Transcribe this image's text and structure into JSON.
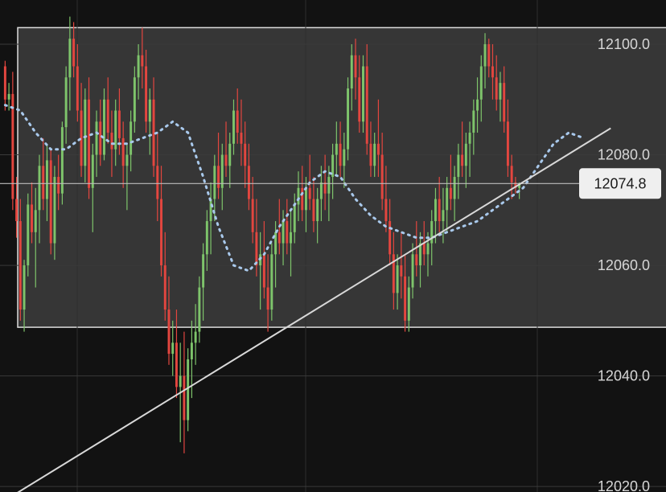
{
  "chart_data": {
    "type": "candlestick",
    "title": "",
    "xlabel": "",
    "ylabel": "",
    "ylim": [
      12019,
      12108
    ],
    "y_ticks": [
      "12020.0",
      "12040.0",
      "12060.0",
      "12080.0",
      "12100.0"
    ],
    "last_price": {
      "value": 12074.8,
      "label": "12074.8"
    },
    "range_box": {
      "low": 12048.8,
      "high": 12103.0
    },
    "trendline": {
      "start": [
        0,
        12017.5
      ],
      "end": [
        159,
        12084.8
      ]
    },
    "colors": {
      "background": "#121212",
      "box_fill": "#363636",
      "up": "#7ec46b",
      "down": "#e3463f",
      "moving_average": "#a9c9ec",
      "trendline": "#d8d8d8",
      "box_border": "#dddddd",
      "last_price_line": "#bdbdbd",
      "label_bg": "#efefef"
    },
    "series": [
      {
        "type": "moving_average",
        "style": "dotted",
        "points": [
          [
            0,
            12089
          ],
          [
            4,
            12088
          ],
          [
            8,
            12084
          ],
          [
            12,
            12081
          ],
          [
            16,
            12081
          ],
          [
            20,
            12083
          ],
          [
            24,
            12084
          ],
          [
            28,
            12082
          ],
          [
            32,
            12082
          ],
          [
            36,
            12083
          ],
          [
            40,
            12084
          ],
          [
            44,
            12086
          ],
          [
            48,
            12084
          ],
          [
            52,
            12076
          ],
          [
            56,
            12067
          ],
          [
            60,
            12060
          ],
          [
            64,
            12059
          ],
          [
            68,
            12062
          ],
          [
            72,
            12067
          ],
          [
            76,
            12071
          ],
          [
            80,
            12075
          ],
          [
            84,
            12077
          ],
          [
            88,
            12076
          ],
          [
            92,
            12072
          ],
          [
            96,
            12069
          ],
          [
            100,
            12067
          ],
          [
            104,
            12066
          ],
          [
            108,
            12065
          ],
          [
            112,
            12065
          ],
          [
            116,
            12066
          ],
          [
            120,
            12067
          ],
          [
            124,
            12068
          ],
          [
            128,
            12070
          ],
          [
            132,
            12072
          ],
          [
            136,
            12074
          ],
          [
            140,
            12078
          ],
          [
            144,
            12082
          ],
          [
            148,
            12084
          ],
          [
            152,
            12083
          ]
        ]
      },
      {
        "type": "candles",
        "ohlc": [
          [
            12096,
            12097,
            12088,
            12090
          ],
          [
            12090,
            12093,
            12088,
            12091
          ],
          [
            12091,
            12095,
            12070,
            12072
          ],
          [
            12072,
            12076,
            12065,
            12068
          ],
          [
            12068,
            12072,
            12050,
            12052
          ],
          [
            12052,
            12061,
            12048,
            12060
          ],
          [
            12060,
            12073,
            12058,
            12071
          ],
          [
            12071,
            12075,
            12064,
            12066
          ],
          [
            12066,
            12074,
            12056,
            12070
          ],
          [
            12070,
            12080,
            12064,
            12078
          ],
          [
            12078,
            12083,
            12070,
            12072
          ],
          [
            12072,
            12082,
            12068,
            12079
          ],
          [
            12079,
            12081,
            12062,
            12064
          ],
          [
            12064,
            12078,
            12061,
            12076
          ],
          [
            12076,
            12080,
            12070,
            12073
          ],
          [
            12073,
            12086,
            12071,
            12085
          ],
          [
            12085,
            12096,
            12082,
            12094
          ],
          [
            12094,
            12105,
            12088,
            12101
          ],
          [
            12101,
            12104,
            12094,
            12096
          ],
          [
            12096,
            12100,
            12086,
            12088
          ],
          [
            12088,
            12093,
            12076,
            12078
          ],
          [
            12078,
            12092,
            12075,
            12090
          ],
          [
            12090,
            12094,
            12072,
            12074
          ],
          [
            12074,
            12082,
            12066,
            12080
          ],
          [
            12080,
            12088,
            12076,
            12086
          ],
          [
            12086,
            12090,
            12078,
            12080
          ],
          [
            12080,
            12092,
            12079,
            12090
          ],
          [
            12090,
            12094,
            12082,
            12084
          ],
          [
            12084,
            12088,
            12076,
            12081
          ],
          [
            12081,
            12090,
            12078,
            12088
          ],
          [
            12088,
            12092,
            12080,
            12083
          ],
          [
            12083,
            12086,
            12074,
            12078
          ],
          [
            12078,
            12082,
            12070,
            12080
          ],
          [
            12080,
            12088,
            12077,
            12086
          ],
          [
            12086,
            12096,
            12084,
            12094
          ],
          [
            12094,
            12100,
            12090,
            12098
          ],
          [
            12098,
            12103,
            12092,
            12096
          ],
          [
            12096,
            12099,
            12084,
            12086
          ],
          [
            12086,
            12092,
            12080,
            12090
          ],
          [
            12090,
            12094,
            12076,
            12078
          ],
          [
            12078,
            12084,
            12068,
            12072
          ],
          [
            12072,
            12078,
            12058,
            12060
          ],
          [
            12060,
            12066,
            12050,
            12052
          ],
          [
            12052,
            12058,
            12042,
            12044
          ],
          [
            12044,
            12050,
            12040,
            12046
          ],
          [
            12046,
            12052,
            12036,
            12038
          ],
          [
            12038,
            12046,
            12028,
            12040
          ],
          [
            12040,
            12048,
            12026,
            12032
          ],
          [
            12032,
            12045,
            12030,
            12043
          ],
          [
            12043,
            12050,
            12036,
            12046
          ],
          [
            12046,
            12053,
            12042,
            12048
          ],
          [
            12048,
            12058,
            12046,
            12056
          ],
          [
            12056,
            12064,
            12050,
            12062
          ],
          [
            12062,
            12070,
            12059,
            12068
          ],
          [
            12068,
            12075,
            12062,
            12072
          ],
          [
            12072,
            12080,
            12068,
            12078
          ],
          [
            12078,
            12084,
            12072,
            12074
          ],
          [
            12074,
            12082,
            12070,
            12080
          ],
          [
            12080,
            12086,
            12076,
            12078
          ],
          [
            12078,
            12084,
            12074,
            12082
          ],
          [
            12082,
            12090,
            12080,
            12088
          ],
          [
            12088,
            12092,
            12082,
            12084
          ],
          [
            12084,
            12090,
            12078,
            12082
          ],
          [
            12082,
            12086,
            12074,
            12078
          ],
          [
            12078,
            12082,
            12070,
            12072
          ],
          [
            12072,
            12076,
            12064,
            12066
          ],
          [
            12066,
            12072,
            12058,
            12060
          ],
          [
            12060,
            12066,
            12052,
            12062
          ],
          [
            12062,
            12068,
            12054,
            12056
          ],
          [
            12056,
            12062,
            12048,
            12052
          ],
          [
            12052,
            12064,
            12050,
            12062
          ],
          [
            12062,
            12068,
            12056,
            12066
          ],
          [
            12066,
            12072,
            12062,
            12064
          ],
          [
            12064,
            12070,
            12060,
            12068
          ],
          [
            12068,
            12072,
            12062,
            12064
          ],
          [
            12064,
            12070,
            12058,
            12066
          ],
          [
            12066,
            12073,
            12064,
            12071
          ],
          [
            12071,
            12077,
            12068,
            12074
          ],
          [
            12074,
            12078,
            12068,
            12070
          ],
          [
            12070,
            12076,
            12066,
            12074
          ],
          [
            12074,
            12080,
            12070,
            12072
          ],
          [
            12072,
            12076,
            12066,
            12068
          ],
          [
            12068,
            12074,
            12064,
            12072
          ],
          [
            12072,
            12078,
            12068,
            12075
          ],
          [
            12075,
            12080,
            12070,
            12073
          ],
          [
            12073,
            12078,
            12068,
            12076
          ],
          [
            12076,
            12082,
            12072,
            12080
          ],
          [
            12080,
            12086,
            12076,
            12082
          ],
          [
            12082,
            12086,
            12076,
            12078
          ],
          [
            12078,
            12084,
            12074,
            12081
          ],
          [
            12081,
            12094,
            12079,
            12092
          ],
          [
            12092,
            12100,
            12088,
            12098
          ],
          [
            12098,
            12101,
            12090,
            12094
          ],
          [
            12094,
            12098,
            12084,
            12086
          ],
          [
            12086,
            12098,
            12084,
            12096
          ],
          [
            12096,
            12100,
            12080,
            12082
          ],
          [
            12082,
            12086,
            12076,
            12078
          ],
          [
            12078,
            12084,
            12076,
            12082
          ],
          [
            12082,
            12090,
            12076,
            12080
          ],
          [
            12080,
            12084,
            12070,
            12072
          ],
          [
            12072,
            12078,
            12066,
            12068
          ],
          [
            12068,
            12072,
            12060,
            12062
          ],
          [
            12062,
            12066,
            12052,
            12055
          ],
          [
            12055,
            12062,
            12052,
            12060
          ],
          [
            12060,
            12066,
            12054,
            12058
          ],
          [
            12058,
            12062,
            12048,
            12050
          ],
          [
            12050,
            12058,
            12048,
            12056
          ],
          [
            12056,
            12064,
            12054,
            12062
          ],
          [
            12062,
            12068,
            12058,
            12060
          ],
          [
            12060,
            12066,
            12056,
            12064
          ],
          [
            12064,
            12068,
            12060,
            12062
          ],
          [
            12062,
            12066,
            12058,
            12064
          ],
          [
            12064,
            12070,
            12060,
            12068
          ],
          [
            12068,
            12074,
            12064,
            12072
          ],
          [
            12072,
            12076,
            12066,
            12068
          ],
          [
            12068,
            12074,
            12064,
            12070
          ],
          [
            12070,
            12076,
            12066,
            12074
          ],
          [
            12074,
            12080,
            12070,
            12072
          ],
          [
            12072,
            12078,
            12068,
            12076
          ],
          [
            12076,
            12082,
            12072,
            12080
          ],
          [
            12080,
            12086,
            12076,
            12078
          ],
          [
            12078,
            12084,
            12074,
            12082
          ],
          [
            12082,
            12086,
            12076,
            12084
          ],
          [
            12084,
            12090,
            12080,
            12088
          ],
          [
            12088,
            12094,
            12084,
            12090
          ],
          [
            12090,
            12098,
            12086,
            12096
          ],
          [
            12096,
            12102,
            12092,
            12100
          ],
          [
            12100,
            12101,
            12094,
            12096
          ],
          [
            12096,
            12100,
            12090,
            12094
          ],
          [
            12094,
            12098,
            12088,
            12090
          ],
          [
            12090,
            12095,
            12086,
            12093
          ],
          [
            12093,
            12096,
            12084,
            12086
          ],
          [
            12086,
            12090,
            12076,
            12078
          ],
          [
            12078,
            12080,
            12072,
            12075
          ],
          [
            12075,
            12076,
            12073,
            12074
          ],
          [
            12074,
            12075,
            12072,
            12074.8
          ]
        ]
      }
    ]
  }
}
